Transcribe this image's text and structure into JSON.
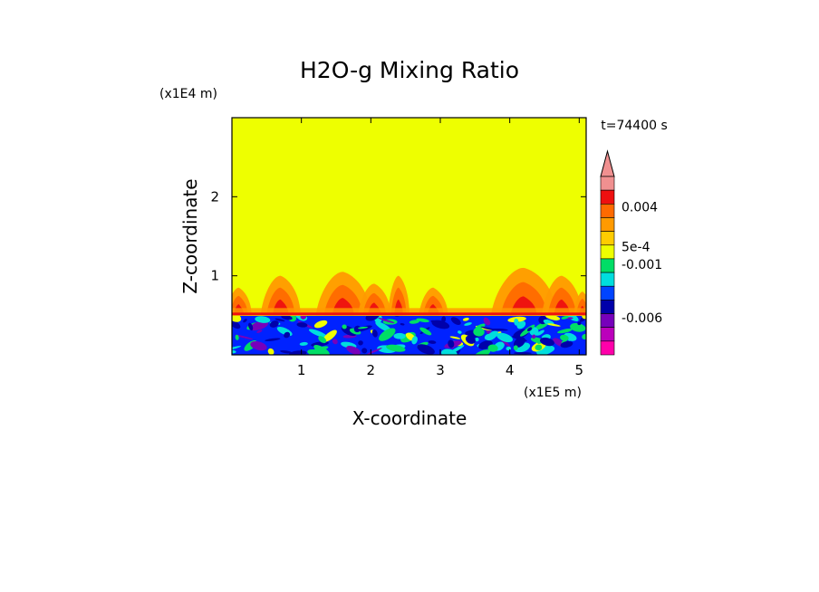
{
  "chart_data": {
    "type": "heatmap",
    "title": "H2O-g Mixing Ratio",
    "xlabel": "X-coordinate",
    "ylabel": "Z-coordinate",
    "x_scale_label": "(x1E5 m)",
    "y_scale_label": "(x1E4 m)",
    "time_label": "t=74400 s",
    "xlim": [
      0,
      5.1
    ],
    "ylim": [
      0,
      3.0
    ],
    "x_ticks": [
      1,
      2,
      3,
      4,
      5
    ],
    "y_ticks": [
      1,
      2
    ],
    "background_value_color": "#eeff00",
    "colorbar": {
      "levels": [
        {
          "color": "#f09090"
        },
        {
          "color": "#ee1010"
        },
        {
          "color": "#ff6a00"
        },
        {
          "color": "#ff9a00"
        },
        {
          "color": "#ffcc00"
        },
        {
          "color": "#eeff00"
        },
        {
          "color": "#00dd66"
        },
        {
          "color": "#00dddd"
        },
        {
          "color": "#0044ff"
        },
        {
          "color": "#0000aa"
        },
        {
          "color": "#7700bb"
        },
        {
          "color": "#bb00bb"
        },
        {
          "color": "#ff00aa"
        }
      ],
      "tick_labels": [
        "0.004",
        "5e-4",
        "-0.001",
        "-0.006"
      ],
      "extend_top_color": "#f09090"
    },
    "regions": {
      "boundary_layer_top_z": 0.5,
      "dry_layer_color": "#0022ff",
      "dark_patch_color": "#0000aa",
      "moist_plume_colors": [
        "#ff9a00",
        "#ff6a00",
        "#ee1010"
      ],
      "mixed_colors": [
        "#00dd66",
        "#00dddd",
        "#eeff00",
        "#7700bb"
      ]
    }
  }
}
